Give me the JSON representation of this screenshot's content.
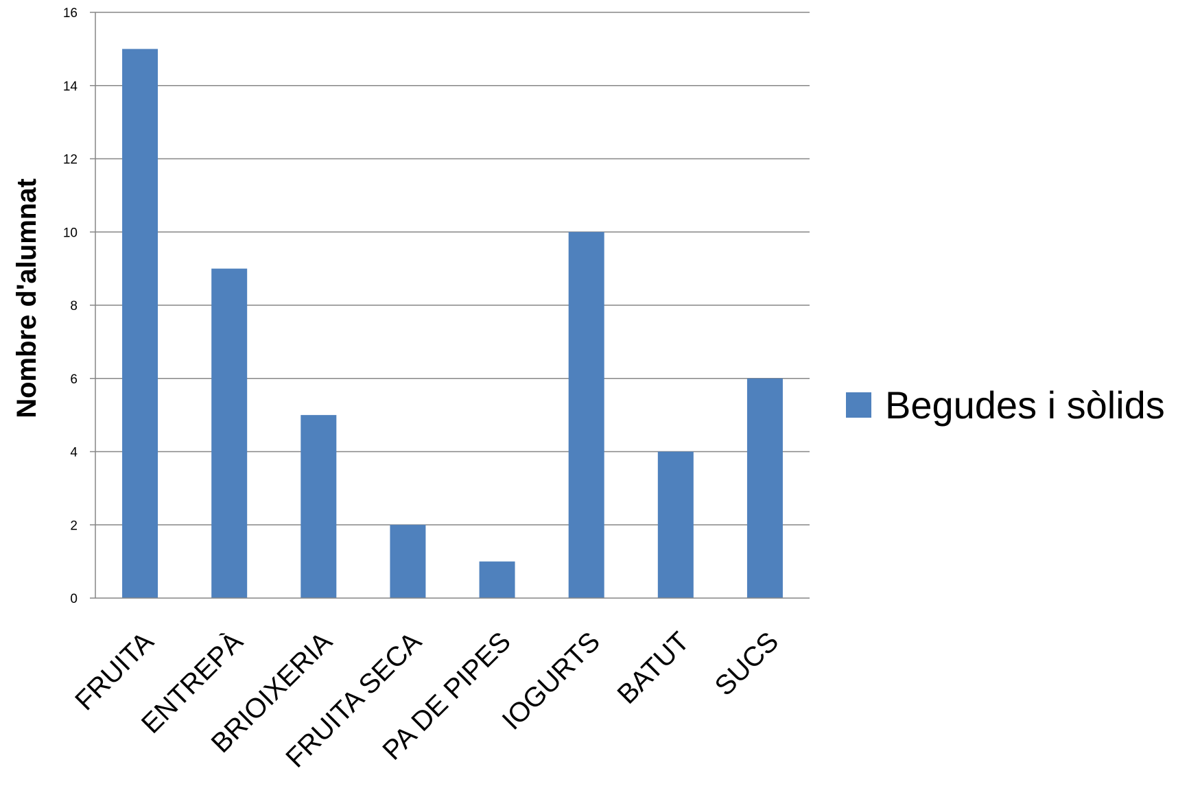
{
  "chart_data": {
    "type": "bar",
    "categories": [
      "FRUITA",
      "ENTREPÀ",
      "BRIOIXERIA",
      "FRUITA SECA",
      "PA DE PIPES",
      "IOGURTS",
      "BATUT",
      "SUCS"
    ],
    "series": [
      {
        "name": "Begudes i sòlids",
        "values": [
          15,
          9,
          5,
          2,
          1,
          10,
          4,
          6
        ],
        "color": "#4F81BD"
      }
    ],
    "ylabel": "Nombre d'alumnat",
    "ylim": [
      0,
      16
    ],
    "yticks": [
      0,
      2,
      4,
      6,
      8,
      10,
      12,
      14,
      16
    ],
    "grid": true,
    "legend_position": "right"
  }
}
